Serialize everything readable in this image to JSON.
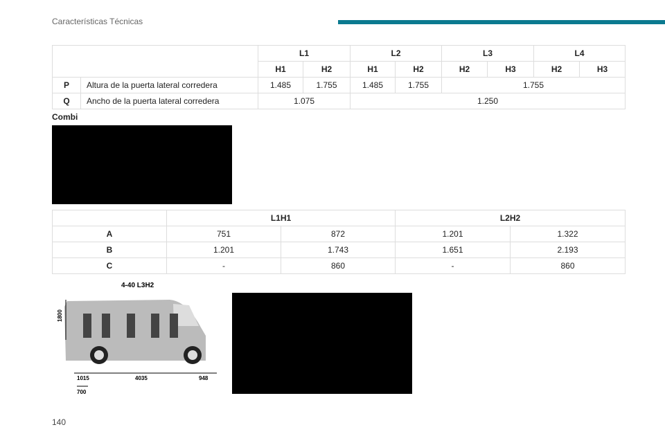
{
  "header": {
    "section": "Características Técnicas",
    "accent": "#0b7a90"
  },
  "table1": {
    "groups": [
      "L1",
      "L2",
      "L3",
      "L4"
    ],
    "subs": [
      "H1",
      "H2",
      "H1",
      "H2",
      "H2",
      "H3",
      "H2",
      "H3"
    ],
    "rows": [
      {
        "key": "P",
        "label": "Altura de la puerta lateral corredera",
        "values": [
          "1.485",
          "1.755",
          "1.485",
          "1.755",
          "1.755"
        ]
      },
      {
        "key": "Q",
        "label": "Ancho de la puerta lateral corredera",
        "values": [
          "1.075",
          "1.250"
        ]
      }
    ]
  },
  "combi_label": "Combi",
  "table2": {
    "groups": [
      "L1H1",
      "L2H2"
    ],
    "rows": [
      {
        "key": "A",
        "values": [
          "751",
          "872",
          "1.201",
          "1.322"
        ]
      },
      {
        "key": "B",
        "values": [
          "1.201",
          "1.743",
          "1.651",
          "2.193"
        ]
      },
      {
        "key": "C",
        "values": [
          "-",
          "860",
          "-",
          "860"
        ]
      }
    ]
  },
  "figure": {
    "title": "4-40 L3H2",
    "height": "1800",
    "dims": [
      "1015",
      "4035",
      "948",
      "700"
    ]
  },
  "page_number": "140"
}
